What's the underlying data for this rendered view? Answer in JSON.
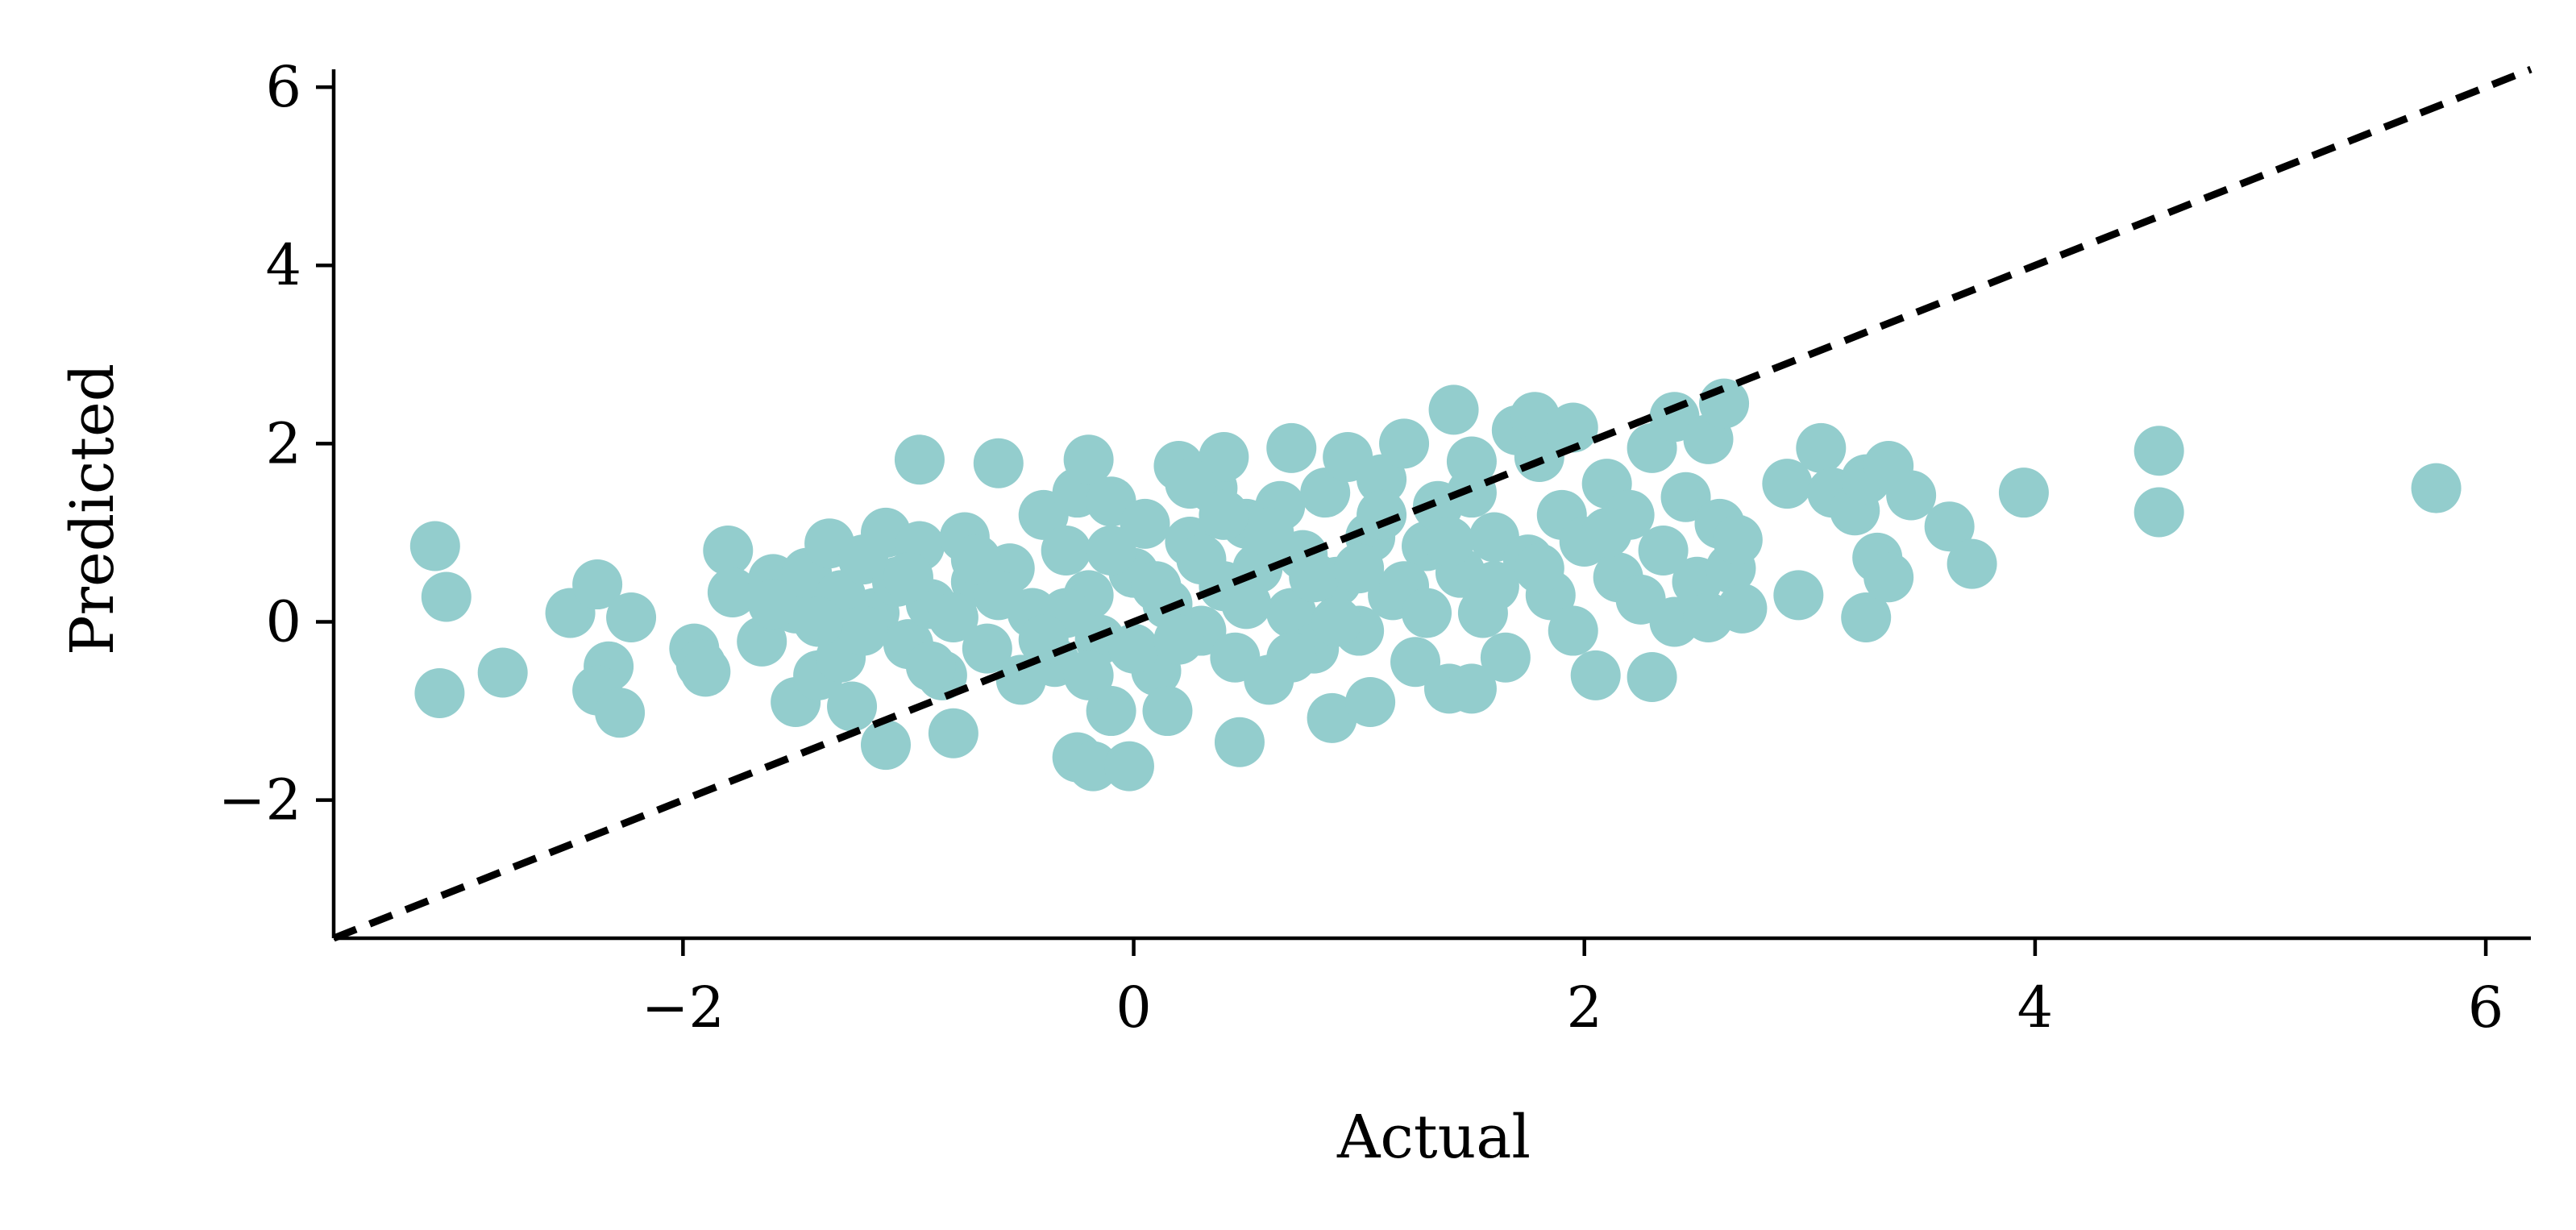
{
  "chart_data": {
    "type": "scatter",
    "title": "",
    "xlabel": "Actual",
    "ylabel": "Predicted",
    "xlim": [
      -3.55,
      6.2
    ],
    "ylim": [
      -3.55,
      6.2
    ],
    "xticks": [
      {
        "value": -2,
        "label": "−2"
      },
      {
        "value": 0,
        "label": "0"
      },
      {
        "value": 2,
        "label": "2"
      },
      {
        "value": 4,
        "label": "4"
      },
      {
        "value": 6,
        "label": "6"
      }
    ],
    "yticks": [
      {
        "value": -2,
        "label": "−2"
      },
      {
        "value": 0,
        "label": "0"
      },
      {
        "value": 2,
        "label": "2"
      },
      {
        "value": 4,
        "label": "4"
      },
      {
        "value": 6,
        "label": "6"
      }
    ],
    "grid": false,
    "legend": false,
    "reference_line": {
      "style": "dashed",
      "color": "#000000",
      "from": [
        -3.55,
        -3.55
      ],
      "to": [
        6.2,
        6.2
      ]
    },
    "marker_color": "#93CDCD",
    "points": [
      [
        -3.1,
        0.85
      ],
      [
        -3.05,
        0.28
      ],
      [
        -3.08,
        -0.8
      ],
      [
        -2.8,
        -0.57
      ],
      [
        -2.5,
        0.1
      ],
      [
        -2.38,
        0.42
      ],
      [
        -2.33,
        -0.5
      ],
      [
        -2.38,
        -0.77
      ],
      [
        -2.28,
        -1.02
      ],
      [
        -2.23,
        0.05
      ],
      [
        -1.95,
        -0.3
      ],
      [
        -1.92,
        -0.48
      ],
      [
        -1.9,
        -0.56
      ],
      [
        -1.8,
        0.8
      ],
      [
        -1.78,
        0.33
      ],
      [
        -1.6,
        0.48
      ],
      [
        -1.65,
        -0.22
      ],
      [
        -1.5,
        0.15
      ],
      [
        -1.5,
        -0.9
      ],
      [
        -1.45,
        0.55
      ],
      [
        -1.4,
        -0.6
      ],
      [
        -1.35,
        0.88
      ],
      [
        -1.3,
        0.3
      ],
      [
        -1.3,
        -0.4
      ],
      [
        -1.25,
        -0.95
      ],
      [
        -1.2,
        0.7
      ],
      [
        -1.15,
        0.1
      ],
      [
        -1.1,
        1.0
      ],
      [
        -1.1,
        -1.38
      ],
      [
        -1.05,
        0.45
      ],
      [
        -1.0,
        -0.25
      ],
      [
        -0.95,
        1.82
      ],
      [
        -0.95,
        0.85
      ],
      [
        -0.9,
        0.2
      ],
      [
        -0.85,
        -0.6
      ],
      [
        -0.8,
        -1.25
      ],
      [
        -0.75,
        0.95
      ],
      [
        -0.7,
        0.45
      ],
      [
        -0.65,
        -0.3
      ],
      [
        -0.6,
        1.78
      ],
      [
        -0.55,
        0.6
      ],
      [
        -0.5,
        -0.65
      ],
      [
        -0.45,
        0.1
      ],
      [
        -0.4,
        1.2
      ],
      [
        -0.35,
        -0.45
      ],
      [
        -0.3,
        0.8
      ],
      [
        -0.25,
        1.45
      ],
      [
        -0.2,
        1.82
      ],
      [
        -0.2,
        0.3
      ],
      [
        -0.15,
        -0.2
      ],
      [
        -0.1,
        1.35
      ],
      [
        -0.1,
        -1.0
      ],
      [
        -0.25,
        -1.52
      ],
      [
        -0.18,
        -1.62
      ],
      [
        -0.02,
        -1.62
      ],
      [
        0.0,
        0.55
      ],
      [
        0.05,
        1.1
      ],
      [
        0.1,
        -0.55
      ],
      [
        0.15,
        0.2
      ],
      [
        0.15,
        -1.0
      ],
      [
        0.2,
        1.75
      ],
      [
        0.25,
        0.9
      ],
      [
        0.3,
        -0.1
      ],
      [
        0.35,
        1.5
      ],
      [
        0.4,
        1.85
      ],
      [
        0.4,
        0.4
      ],
      [
        0.45,
        -0.4
      ],
      [
        0.47,
        -1.35
      ],
      [
        0.5,
        1.1
      ],
      [
        0.55,
        0.6
      ],
      [
        0.6,
        -0.65
      ],
      [
        0.65,
        1.3
      ],
      [
        0.7,
        1.95
      ],
      [
        0.7,
        0.1
      ],
      [
        0.75,
        0.75
      ],
      [
        0.8,
        -0.3
      ],
      [
        0.85,
        1.45
      ],
      [
        0.88,
        -1.08
      ],
      [
        0.9,
        0.45
      ],
      [
        0.95,
        1.85
      ],
      [
        1.0,
        -0.1
      ],
      [
        1.05,
        0.95
      ],
      [
        1.05,
        -0.9
      ],
      [
        1.1,
        1.6
      ],
      [
        1.15,
        0.3
      ],
      [
        1.2,
        2.0
      ],
      [
        1.25,
        -0.45
      ],
      [
        1.3,
        0.85
      ],
      [
        1.35,
        1.3
      ],
      [
        1.4,
        -0.75
      ],
      [
        1.42,
        2.38
      ],
      [
        1.45,
        0.55
      ],
      [
        1.5,
        1.45
      ],
      [
        1.5,
        -0.75
      ],
      [
        1.55,
        0.1
      ],
      [
        1.6,
        0.95
      ],
      [
        1.65,
        -0.4
      ],
      [
        1.7,
        2.15
      ],
      [
        1.75,
        0.7
      ],
      [
        1.78,
        2.3
      ],
      [
        1.8,
        1.85
      ],
      [
        1.85,
        0.3
      ],
      [
        1.9,
        1.2
      ],
      [
        1.95,
        2.18
      ],
      [
        1.95,
        -0.1
      ],
      [
        2.0,
        0.9
      ],
      [
        2.05,
        -0.6
      ],
      [
        2.1,
        1.55
      ],
      [
        2.15,
        0.5
      ],
      [
        2.2,
        1.2
      ],
      [
        2.25,
        0.25
      ],
      [
        2.3,
        1.95
      ],
      [
        2.3,
        -0.62
      ],
      [
        2.35,
        0.8
      ],
      [
        2.4,
        2.3
      ],
      [
        2.4,
        0.0
      ],
      [
        2.45,
        1.4
      ],
      [
        2.5,
        0.45
      ],
      [
        2.55,
        2.05
      ],
      [
        2.55,
        0.05
      ],
      [
        2.6,
        1.1
      ],
      [
        2.62,
        2.45
      ],
      [
        2.65,
        0.6
      ],
      [
        2.68,
        0.92
      ],
      [
        2.7,
        0.15
      ],
      [
        2.9,
        1.55
      ],
      [
        2.95,
        0.3
      ],
      [
        3.05,
        1.95
      ],
      [
        3.1,
        1.45
      ],
      [
        3.2,
        1.25
      ],
      [
        3.25,
        1.6
      ],
      [
        3.25,
        0.05
      ],
      [
        3.3,
        0.72
      ],
      [
        3.35,
        0.5
      ],
      [
        3.35,
        1.75
      ],
      [
        3.45,
        1.42
      ],
      [
        3.62,
        1.07
      ],
      [
        3.72,
        0.65
      ],
      [
        3.95,
        1.45
      ],
      [
        4.55,
        1.92
      ],
      [
        4.55,
        1.23
      ],
      [
        5.78,
        1.5
      ],
      [
        -1.2,
        -0.1
      ],
      [
        -0.8,
        0.05
      ],
      [
        -0.6,
        0.3
      ],
      [
        -0.3,
        0.1
      ],
      [
        0.1,
        0.4
      ],
      [
        0.3,
        0.7
      ],
      [
        0.5,
        0.2
      ],
      [
        0.8,
        0.5
      ],
      [
        1.0,
        0.6
      ],
      [
        1.2,
        0.4
      ],
      [
        1.4,
        0.9
      ],
      [
        0.0,
        -0.3
      ],
      [
        -0.4,
        -0.2
      ],
      [
        0.6,
        1.0
      ],
      [
        1.1,
        1.2
      ],
      [
        -0.9,
        -0.5
      ],
      [
        0.2,
        -0.2
      ],
      [
        0.9,
        0.0
      ],
      [
        1.6,
        0.4
      ],
      [
        -0.1,
        0.8
      ],
      [
        -1.4,
        0.0
      ],
      [
        -0.7,
        0.7
      ],
      [
        0.4,
        1.2
      ],
      [
        1.3,
        0.1
      ],
      [
        1.8,
        0.6
      ],
      [
        -1.0,
        0.5
      ],
      [
        0.7,
        -0.4
      ],
      [
        -0.2,
        -0.6
      ],
      [
        1.5,
        1.8
      ],
      [
        2.1,
        1.0
      ],
      [
        -1.6,
        0.2
      ],
      [
        0.25,
        1.55
      ]
    ]
  }
}
